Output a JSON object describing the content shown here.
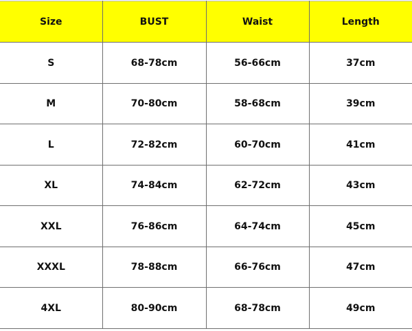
{
  "header": {
    "color": "#ffff00",
    "columns": [
      "Size",
      "BUST",
      "Waist",
      "Length"
    ]
  },
  "rows": [
    [
      "S",
      "68-78cm",
      "56-66cm",
      "37cm"
    ],
    [
      "M",
      "70-80cm",
      "58-68cm",
      "39cm"
    ],
    [
      "L",
      "72-82cm",
      "60-70cm",
      "41cm"
    ],
    [
      "XL",
      "74-84cm",
      "62-72cm",
      "43cm"
    ],
    [
      "XXL",
      "76-86cm",
      "64-74cm",
      "45cm"
    ],
    [
      "XXXL",
      "78-88cm",
      "66-76cm",
      "47cm"
    ],
    [
      "4XL",
      "80-90cm",
      "68-78cm",
      "49cm"
    ]
  ]
}
